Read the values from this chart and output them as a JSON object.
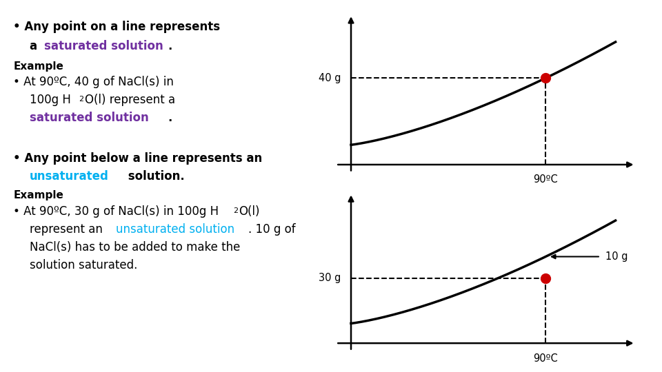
{
  "bg_color": "#ffffff",
  "text_color": "#000000",
  "purple_color": "#7030A0",
  "cyan_color": "#00B0F0",
  "red_dot_color": "#CC0000",
  "top_chart": {
    "label_x": "90ºC",
    "label_y": "40 g"
  },
  "bottom_chart": {
    "label_x": "90ºC",
    "label_y": "30 g",
    "arrow_label": "10 g"
  }
}
